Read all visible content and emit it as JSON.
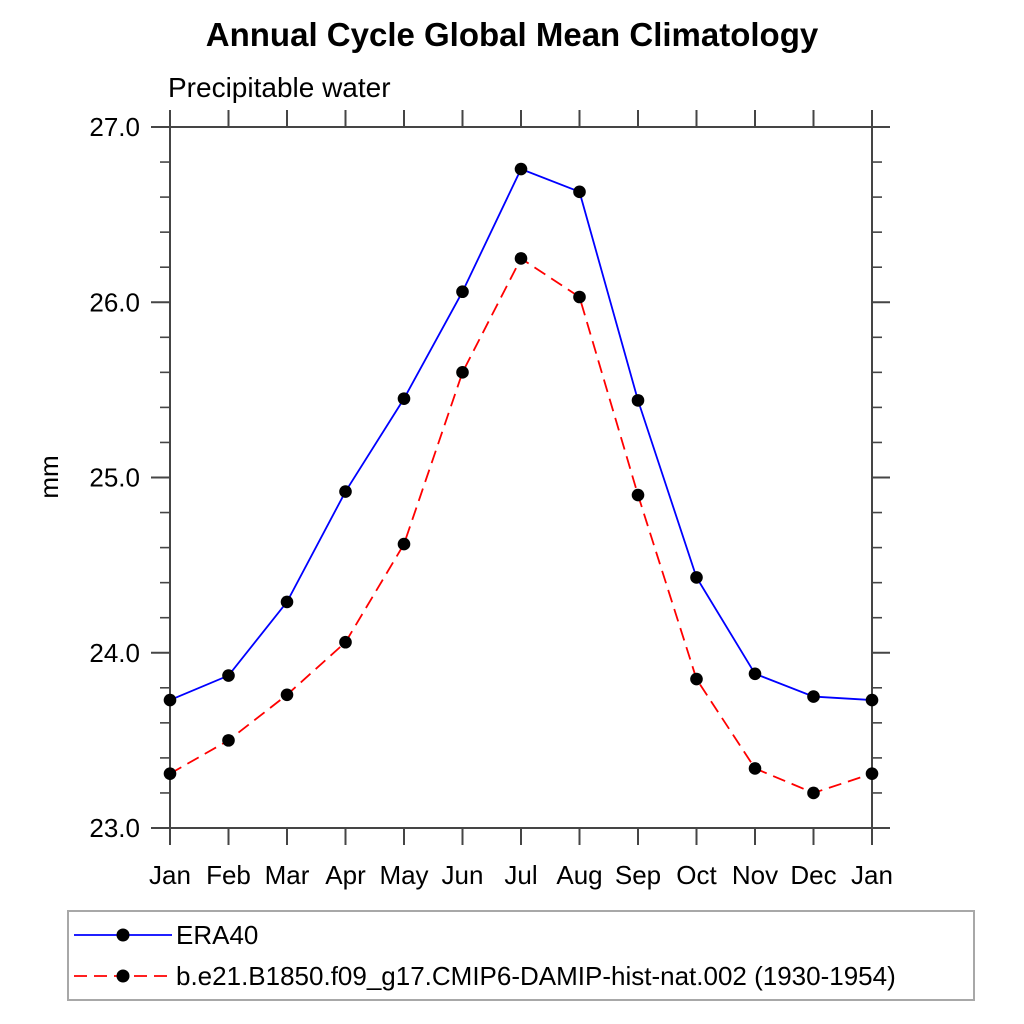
{
  "header": {
    "title": "Annual Cycle Global Mean Climatology",
    "subtitle": "Precipitable water"
  },
  "chart_data": {
    "type": "line",
    "title": "Annual Cycle Global Mean Climatology",
    "subtitle": "Precipitable water",
    "xlabel": "",
    "ylabel": "mm",
    "ylim": [
      23.0,
      27.0
    ],
    "y_major_ticks": [
      "23.0",
      "24.0",
      "25.0",
      "26.0",
      "27.0"
    ],
    "y_minor_tick_interval": 0.2,
    "grid": "off",
    "legend_position": "bottom-left",
    "x_categories": [
      "Jan",
      "Feb",
      "Mar",
      "Apr",
      "May",
      "Jun",
      "Jul",
      "Aug",
      "Sep",
      "Oct",
      "Nov",
      "Dec",
      "Jan"
    ],
    "series": [
      {
        "name": "ERA40",
        "color": "#0000ff",
        "line_style": "solid",
        "marker": "circle",
        "marker_color": "#000000",
        "values": [
          23.73,
          23.87,
          24.29,
          24.92,
          25.45,
          26.06,
          26.76,
          26.63,
          25.44,
          24.43,
          23.88,
          23.75,
          23.73
        ]
      },
      {
        "name": "b.e21.B1850.f09_g17.CMIP6-DAMIP-hist-nat.002 (1930-1954)",
        "color": "#ff0000",
        "line_style": "dashed",
        "marker": "circle",
        "marker_color": "#000000",
        "values": [
          23.31,
          23.5,
          23.76,
          24.06,
          24.62,
          25.6,
          26.25,
          26.03,
          24.9,
          23.85,
          23.34,
          23.2,
          23.31
        ]
      }
    ],
    "axis_color": "#454545",
    "text_color": "#000000"
  }
}
